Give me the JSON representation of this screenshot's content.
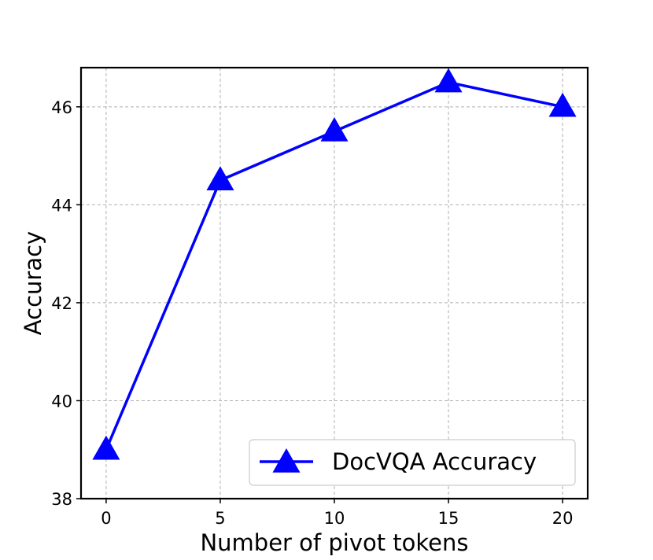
{
  "chart_data": {
    "type": "line",
    "title": "",
    "xlabel": "Number of pivot tokens",
    "ylabel": "Accuracy",
    "x": [
      0,
      5,
      10,
      15,
      20
    ],
    "xticks": [
      0,
      5,
      10,
      15,
      20
    ],
    "xtick_labels": [
      "0",
      "5",
      "10",
      "15",
      "20"
    ],
    "yticks": [
      38,
      40,
      42,
      44,
      46
    ],
    "ytick_labels": [
      "38",
      "40",
      "42",
      "44",
      "46"
    ],
    "xlim": [
      -1.1,
      21.1
    ],
    "ylim": [
      38,
      46.8
    ],
    "grid": true,
    "legend_position": "lower-right",
    "series": [
      {
        "name": "DocVQA Accuracy",
        "color": "#0000ff",
        "marker": "triangle-up",
        "values": [
          39.0,
          44.5,
          45.5,
          46.5,
          46.0
        ]
      }
    ]
  }
}
